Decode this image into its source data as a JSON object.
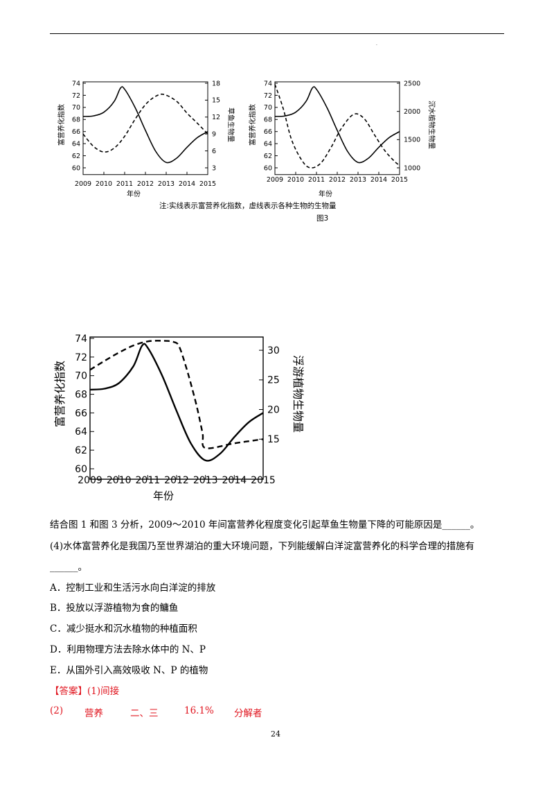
{
  "header": {
    "dot": "."
  },
  "chart_data": [
    {
      "type": "line",
      "x": [
        2009,
        2010,
        2011,
        2012,
        2013,
        2014,
        2015
      ],
      "xlabel": "年份",
      "ylabel": "富营养化指数",
      "y2label": "草鱼生物量",
      "ylim": [
        60,
        74
      ],
      "y2lim": [
        3,
        18
      ],
      "yticks": [
        60,
        62,
        64,
        66,
        68,
        70,
        72,
        74
      ],
      "y2ticks": [
        3,
        6,
        9,
        12,
        15,
        18
      ],
      "series": [
        {
          "style": "solid",
          "axis": "left",
          "points": [
            [
              2009,
              68.5
            ],
            [
              2009.5,
              68.6
            ],
            [
              2010,
              69.2
            ],
            [
              2010.5,
              71.0
            ],
            [
              2010.8,
              73.2
            ],
            [
              2011,
              73.0
            ],
            [
              2011.5,
              70
            ],
            [
              2012,
              66.2
            ],
            [
              2012.5,
              62.7
            ],
            [
              2013,
              60.9
            ],
            [
              2013.5,
              61.6
            ],
            [
              2014,
              63.4
            ],
            [
              2014.5,
              65.0
            ],
            [
              2015,
              66.0
            ]
          ]
        },
        {
          "style": "dashed",
          "axis": "right",
          "points": [
            [
              2009,
              9.0
            ],
            [
              2009.5,
              6.8
            ],
            [
              2010,
              5.8
            ],
            [
              2010.5,
              6.5
            ],
            [
              2011,
              8.6
            ],
            [
              2011.5,
              11.6
            ],
            [
              2012,
              14.2
            ],
            [
              2012.5,
              15.7
            ],
            [
              2012.9,
              16.0
            ],
            [
              2013.5,
              14.8
            ],
            [
              2014,
              12.7
            ],
            [
              2014.5,
              10.9
            ],
            [
              2015,
              9.0
            ]
          ]
        }
      ]
    },
    {
      "type": "line",
      "x": [
        2009,
        2010,
        2011,
        2012,
        2013,
        2014,
        2015
      ],
      "xlabel": "年份",
      "ylabel": "富营养化指数",
      "y2label": "沉水植物生物量",
      "ylim": [
        60,
        74
      ],
      "y2lim": [
        1000,
        2500
      ],
      "yticks": [
        60,
        62,
        64,
        66,
        68,
        70,
        72,
        74
      ],
      "y2ticks": [
        1000,
        1500,
        2000,
        2500
      ],
      "series": [
        {
          "style": "solid",
          "axis": "left",
          "points": [
            [
              2009,
              68.5
            ],
            [
              2009.5,
              68.6
            ],
            [
              2010,
              69.2
            ],
            [
              2010.5,
              71.0
            ],
            [
              2010.8,
              73.2
            ],
            [
              2011,
              73.0
            ],
            [
              2011.5,
              70
            ],
            [
              2012,
              66.2
            ],
            [
              2012.5,
              62.7
            ],
            [
              2013,
              60.9
            ],
            [
              2013.5,
              61.6
            ],
            [
              2014,
              63.4
            ],
            [
              2014.5,
              65.0
            ],
            [
              2015,
              66.0
            ]
          ]
        },
        {
          "style": "dashed",
          "axis": "right",
          "points": [
            [
              2009,
              2480
            ],
            [
              2009.4,
              2050
            ],
            [
              2009.8,
              1500
            ],
            [
              2010.3,
              1130
            ],
            [
              2010.7,
              1000
            ],
            [
              2011.2,
              1080
            ],
            [
              2011.7,
              1360
            ],
            [
              2012.2,
              1700
            ],
            [
              2012.8,
              1950
            ],
            [
              2013.3,
              1870
            ],
            [
              2013.8,
              1580
            ],
            [
              2014.3,
              1300
            ],
            [
              2014.8,
              1100
            ],
            [
              2015,
              1050
            ]
          ]
        }
      ]
    },
    {
      "type": "line",
      "x": [
        2009,
        2010,
        2011,
        2012,
        2013,
        2014,
        2015
      ],
      "xlabel": "年份",
      "ylabel": "富营养化指数",
      "y2label": "浮游植物生物量",
      "ylim": [
        60,
        74
      ],
      "y2lim": [
        10,
        32
      ],
      "yticks": [
        60,
        62,
        64,
        66,
        68,
        70,
        72,
        74
      ],
      "y2ticks": [
        15,
        20,
        25,
        30
      ],
      "series": [
        {
          "style": "solid",
          "axis": "left",
          "points": [
            [
              2009,
              68.5
            ],
            [
              2009.5,
              68.6
            ],
            [
              2010,
              69.2
            ],
            [
              2010.5,
              71.0
            ],
            [
              2010.8,
              73.2
            ],
            [
              2011,
              73.0
            ],
            [
              2011.5,
              70
            ],
            [
              2012,
              66.2
            ],
            [
              2012.5,
              62.7
            ],
            [
              2013,
              60.9
            ],
            [
              2013.5,
              61.6
            ],
            [
              2014,
              63.4
            ],
            [
              2014.5,
              65.0
            ],
            [
              2015,
              66.0
            ]
          ]
        },
        {
          "style": "dashed",
          "axis": "right",
          "points": [
            [
              2009,
              26.7
            ],
            [
              2009.5,
              28.2
            ],
            [
              2010,
              29.6
            ],
            [
              2010.5,
              30.8
            ],
            [
              2011,
              31.5
            ],
            [
              2011.5,
              31.6
            ],
            [
              2011.9,
              31.4
            ],
            [
              2012.1,
              30.5
            ],
            [
              2012.4,
              26
            ],
            [
              2012.7,
              20.5
            ],
            [
              2012.9,
              16
            ],
            [
              2013,
              13.5
            ],
            [
              2014,
              14.3
            ],
            [
              2015,
              15.0
            ]
          ]
        }
      ]
    }
  ],
  "figure": {
    "note": "注:实线表示富营养化指数，虚线表示各种生物的生物量",
    "label": "图3"
  },
  "text": {
    "q3_line": "结合图 1 和图 3 分析，2009～2010 年间富营养化程度变化引起草鱼生物量下降的可能原因是______。",
    "q4_line1": "(4)水体富营养化是我国乃至世界湖泊的重大环境问题，下列能缓解白洋淀富营养化的科学合理的措施有",
    "q4_line2": "______。",
    "options": [
      "A．控制工业和生活污水向白洋淀的排放",
      "B．投放以浮游植物为食的鳙鱼",
      "C．减少挺水和沉水植物的种植面积",
      "D．利用物理方法去除水体中的 N、P",
      "E．从国外引入高效吸收 N、P 的植物"
    ],
    "answer_label": "【答案】",
    "answer_1": "(1)间接",
    "answer_2": [
      "(2)",
      "营养",
      "二、三",
      "16.1%",
      "分解者"
    ]
  },
  "page_number": "24"
}
